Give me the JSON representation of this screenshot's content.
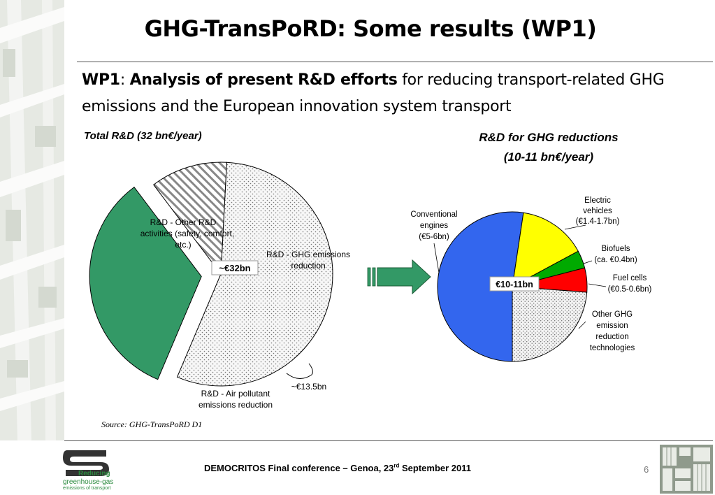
{
  "slide": {
    "title": "GHG-TransPoRD: Some results (WP1)",
    "subtitle": {
      "prefix": "WP1",
      "separator": ": ",
      "bold": "Analysis of present R&D efforts",
      "rest": " for reducing transport-related GHG emissions and the European innovation system transport"
    },
    "source": "Source: GHG-TransPoRD D1",
    "footer": {
      "text": "DEMOCRITOS Final conference – Genoa, 23",
      "superscript": "rd",
      "text_after": " September 2011",
      "page_number": "6"
    },
    "logo": {
      "line1": "Reducing",
      "line2": "greenhouse-gas",
      "line3": "emissions of transport"
    }
  },
  "chart_data": [
    {
      "type": "pie",
      "title": "Total R&D (32 bn€/year)",
      "center_label": "~€32bn",
      "slices": [
        {
          "name": "R&D - Other R&D activities (safety, comfort, etc.)",
          "value": 17.5,
          "color": "#f4f4f4",
          "pattern": "dots"
        },
        {
          "name": "R&D - GHG emissions reduction",
          "value": 10.5,
          "color": "#339966",
          "exploded": true
        },
        {
          "name": "R&D - Air pollutant emissions reduction",
          "value": 3.5,
          "color": "#ffffff",
          "pattern": "hatch"
        }
      ],
      "annotations": [
        {
          "text": "~€13.5bn"
        }
      ]
    },
    {
      "type": "pie",
      "title": "R&D for GHG reductions",
      "subtitle": "(10-11 bn€/year)",
      "center_label": "€10-11bn",
      "slices": [
        {
          "name": "Conventional engines",
          "detail": "(€5-6bn)",
          "value": 5.5,
          "color": "#3366ee"
        },
        {
          "name": "Electric vehicles",
          "detail": "(€1.4-1.7bn)",
          "value": 1.55,
          "color": "#ffff00"
        },
        {
          "name": "Biofuels",
          "detail": "(ca. €0.4bn)",
          "value": 0.4,
          "color": "#00aa00"
        },
        {
          "name": "Fuel cells",
          "detail": "(€0.5-0.6bn)",
          "value": 0.55,
          "color": "#ff0000"
        },
        {
          "name": "Other GHG emission reduction technologies",
          "detail": "",
          "value": 2.5,
          "color": "#f0f0f0",
          "pattern": "dots"
        }
      ]
    }
  ]
}
